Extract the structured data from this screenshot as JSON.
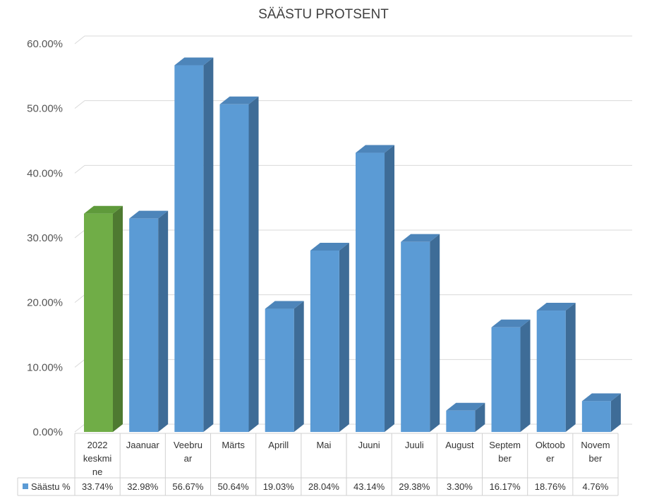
{
  "chart_data": {
    "type": "bar",
    "title": "SÄÄSTU PROTSENT",
    "categories": [
      "2022 keskmine",
      "Jaanuar",
      "Veebruar",
      "Märts",
      "Aprill",
      "Mai",
      "Juuni",
      "Juuli",
      "August",
      "September",
      "Oktoober",
      "November"
    ],
    "category_lines": [
      [
        "2022",
        "keskmi",
        "ne"
      ],
      [
        "Jaanuar"
      ],
      [
        "Veebru",
        "ar"
      ],
      [
        "Märts"
      ],
      [
        "Aprill"
      ],
      [
        "Mai"
      ],
      [
        "Juuni"
      ],
      [
        "Juuli"
      ],
      [
        "August"
      ],
      [
        "Septem",
        "ber"
      ],
      [
        "Oktoob",
        "er"
      ],
      [
        "Novem",
        "ber"
      ]
    ],
    "series": [
      {
        "name": "Säästu %",
        "values": [
          33.74,
          32.98,
          56.67,
          50.64,
          19.03,
          28.04,
          43.14,
          29.38,
          3.3,
          16.17,
          18.76,
          4.76
        ],
        "labels": [
          "33.74%",
          "32.98%",
          "56.67%",
          "50.64%",
          "19.03%",
          "28.04%",
          "43.14%",
          "29.38%",
          "3.30%",
          "16.17%",
          "18.76%",
          "4.76%"
        ]
      }
    ],
    "highlight_index": 0,
    "ylim": [
      0,
      60
    ],
    "yticks": [
      "0.00%",
      "10.00%",
      "20.00%",
      "30.00%",
      "40.00%",
      "50.00%",
      "60.00%"
    ],
    "grid": true,
    "legend_placement": "data-table",
    "colors": {
      "bar_front": "#5b9bd5",
      "bar_side": "#3e6c97",
      "bar_top": "#4d85ba",
      "highlight_front": "#70ad47",
      "highlight_side": "#4e7a31",
      "highlight_top": "#5f9a3b",
      "grid": "#d9d9d9",
      "legend_marker": "#5b9bd5"
    }
  }
}
